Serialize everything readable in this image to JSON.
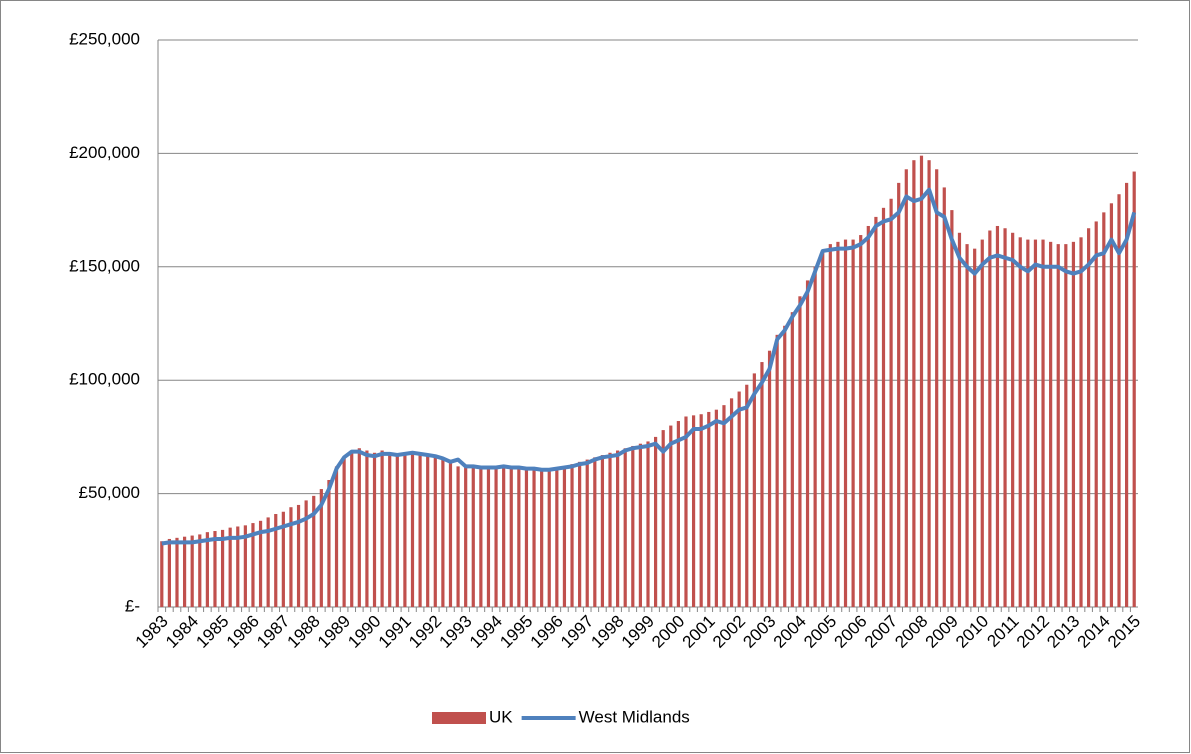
{
  "chart_data": {
    "type": "bar-line",
    "categories": [
      "1983",
      null,
      null,
      null,
      "1984",
      null,
      null,
      null,
      "1985",
      null,
      null,
      null,
      "1986",
      null,
      null,
      null,
      "1987",
      null,
      null,
      null,
      "1988",
      null,
      null,
      null,
      "1989",
      null,
      null,
      null,
      "1990",
      null,
      null,
      null,
      "1991",
      null,
      null,
      null,
      "1992",
      null,
      null,
      null,
      "1993",
      null,
      null,
      null,
      "1994",
      null,
      null,
      null,
      "1995",
      null,
      null,
      null,
      "1996",
      null,
      null,
      null,
      "1997",
      null,
      null,
      null,
      "1998",
      null,
      null,
      null,
      "1999",
      null,
      null,
      null,
      "2000",
      null,
      null,
      null,
      "2001",
      null,
      null,
      null,
      "2002",
      null,
      null,
      null,
      "2003",
      null,
      null,
      null,
      "2004",
      null,
      null,
      null,
      "2005",
      null,
      null,
      null,
      "2006",
      null,
      null,
      null,
      "2007",
      null,
      null,
      null,
      "2008",
      null,
      null,
      null,
      "2009",
      null,
      null,
      null,
      "2010",
      null,
      null,
      null,
      "2011",
      null,
      null,
      null,
      "2012",
      null,
      null,
      null,
      "2013",
      null,
      null,
      null,
      "2014",
      null,
      null,
      null,
      "2015"
    ],
    "series": [
      {
        "name": "UK",
        "type": "bar",
        "color": "#c0504d",
        "values": [
          29000,
          30000,
          30500,
          31000,
          31500,
          32000,
          33000,
          33500,
          34000,
          35000,
          35500,
          36000,
          37000,
          38000,
          39500,
          41000,
          42000,
          44000,
          45000,
          47000,
          49000,
          52000,
          56000,
          62000,
          66000,
          69000,
          70000,
          69000,
          68000,
          69000,
          68000,
          67000,
          68000,
          68000,
          67000,
          67000,
          66000,
          65000,
          64000,
          62000,
          62000,
          62000,
          62000,
          62000,
          61000,
          62000,
          62000,
          61500,
          61000,
          61000,
          61000,
          60500,
          61000,
          62000,
          63000,
          64000,
          65000,
          66000,
          67000,
          68000,
          69000,
          70000,
          71000,
          72000,
          73000,
          75000,
          78000,
          80000,
          82000,
          84000,
          84500,
          85000,
          86000,
          87000,
          89000,
          92000,
          95000,
          98000,
          103000,
          108000,
          113000,
          120000,
          124000,
          130000,
          137000,
          144000,
          150000,
          157000,
          160000,
          161000,
          162000,
          162000,
          164000,
          168000,
          172000,
          176000,
          180000,
          187000,
          193000,
          197000,
          199000,
          197000,
          193000,
          185000,
          175000,
          165000,
          160000,
          158000,
          162000,
          166000,
          168000,
          167000,
          165000,
          163000,
          162000,
          162000,
          162000,
          161000,
          160000,
          160000,
          161000,
          163000,
          167000,
          170000,
          174000,
          178000,
          182000,
          187000,
          192000
        ]
      },
      {
        "name": "West Midlands",
        "type": "line",
        "color": "#4f81bd",
        "values": [
          28000,
          28500,
          28500,
          28500,
          28500,
          29000,
          29500,
          30000,
          30000,
          30500,
          30500,
          31000,
          32000,
          33000,
          33500,
          34500,
          35500,
          36500,
          37500,
          39000,
          41000,
          45000,
          52000,
          61000,
          66000,
          68500,
          68500,
          67000,
          66500,
          67500,
          67500,
          67000,
          67500,
          68000,
          67500,
          67000,
          66500,
          65500,
          64000,
          65000,
          62000,
          62000,
          61500,
          61500,
          61500,
          62000,
          61500,
          61500,
          61000,
          61000,
          60500,
          60500,
          61000,
          61500,
          62000,
          63000,
          63500,
          65000,
          66000,
          66500,
          67000,
          69000,
          70000,
          70500,
          71000,
          72000,
          68500,
          72000,
          73500,
          75000,
          78500,
          78500,
          80000,
          82000,
          81000,
          84000,
          87000,
          88000,
          94000,
          99000,
          105000,
          118000,
          122000,
          128000,
          133000,
          139000,
          148000,
          157000,
          157500,
          158000,
          158000,
          158500,
          160000,
          163000,
          168000,
          170000,
          171000,
          174000,
          181000,
          179000,
          180000,
          184000,
          174000,
          172000,
          162000,
          154000,
          150000,
          147000,
          151000,
          154000,
          155000,
          154000,
          153000,
          150000,
          148000,
          151000,
          150000,
          150000,
          150000,
          148000,
          147000,
          148000,
          151000,
          155000,
          156000,
          162000,
          156000,
          162000,
          174000
        ]
      }
    ],
    "ylim": [
      0,
      250000
    ],
    "yticks": [
      {
        "value": 0,
        "label": "£-"
      },
      {
        "value": 50000,
        "label": "£50,000"
      },
      {
        "value": 100000,
        "label": "£100,000"
      },
      {
        "value": 150000,
        "label": "£150,000"
      },
      {
        "value": 200000,
        "label": "£200,000"
      },
      {
        "value": 250000,
        "label": "£250,000"
      }
    ],
    "grid": true,
    "legend": "bottom"
  }
}
